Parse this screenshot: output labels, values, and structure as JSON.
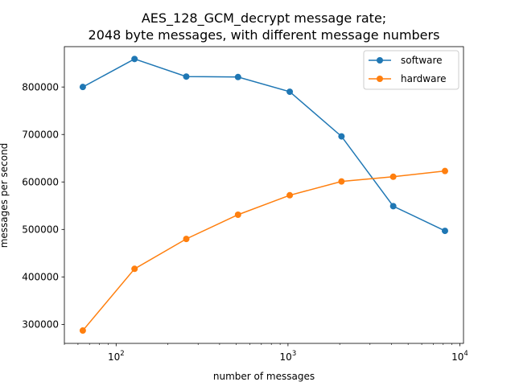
{
  "chart_data": {
    "type": "line",
    "title_line1": "AES_128_GCM_decrypt message rate;",
    "title_line2": "2048 byte messages, with different message numbers",
    "xlabel": "number of messages",
    "ylabel": "messages per second",
    "xscale": "log",
    "xlim": [
      50,
      10500
    ],
    "ylim": [
      260000,
      885000
    ],
    "x_major_ticks": [
      {
        "value": 100,
        "base": "10",
        "exp": "2"
      },
      {
        "value": 1000,
        "base": "10",
        "exp": "3"
      },
      {
        "value": 10000,
        "base": "10",
        "exp": "4"
      }
    ],
    "y_ticks": [
      {
        "value": 300000,
        "label": "300000"
      },
      {
        "value": 400000,
        "label": "400000"
      },
      {
        "value": 500000,
        "label": "500000"
      },
      {
        "value": 600000,
        "label": "600000"
      },
      {
        "value": 700000,
        "label": "700000"
      },
      {
        "value": 800000,
        "label": "800000"
      }
    ],
    "x": [
      64,
      128,
      256,
      512,
      1024,
      2048,
      4096,
      8192
    ],
    "series": [
      {
        "name": "software",
        "color": "#1f77b4",
        "values": [
          800000,
          859000,
          822000,
          821000,
          790000,
          696000,
          549000,
          497000
        ]
      },
      {
        "name": "hardware",
        "color": "#ff7f0e",
        "values": [
          287000,
          417000,
          480000,
          531000,
          572000,
          601000,
          611000,
          623000
        ]
      }
    ],
    "grid": false,
    "legend_position": "top-right"
  }
}
